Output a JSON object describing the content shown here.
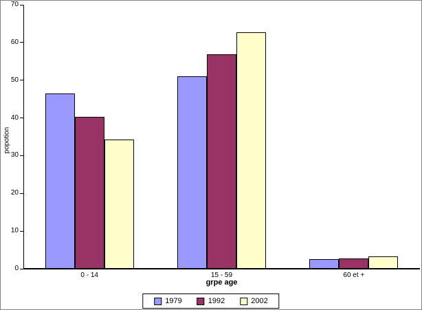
{
  "canvas": {
    "background": "#FFFFFF",
    "border_color": "#808080"
  },
  "chart_data": {
    "type": "bar",
    "title": "",
    "xlabel": "grpe age",
    "ylabel": "popotion",
    "categories": [
      "0 - 14",
      "15 - 59",
      "60 et +"
    ],
    "series": [
      {
        "name": "1979",
        "color": "#9999FF",
        "values": [
          46.4,
          51.1,
          2.5
        ]
      },
      {
        "name": "1992",
        "color": "#993366",
        "values": [
          40.3,
          56.9,
          2.7
        ]
      },
      {
        "name": "2002",
        "color": "#FFFFCC",
        "values": [
          34.2,
          62.7,
          3.3
        ]
      }
    ],
    "ylim": [
      0,
      70
    ],
    "yticks": [
      0,
      10,
      20,
      30,
      40,
      50,
      60,
      70
    ],
    "grid": false,
    "legend_position": "bottom",
    "axis_color": "#000000",
    "bar_border_color": "#000000"
  }
}
